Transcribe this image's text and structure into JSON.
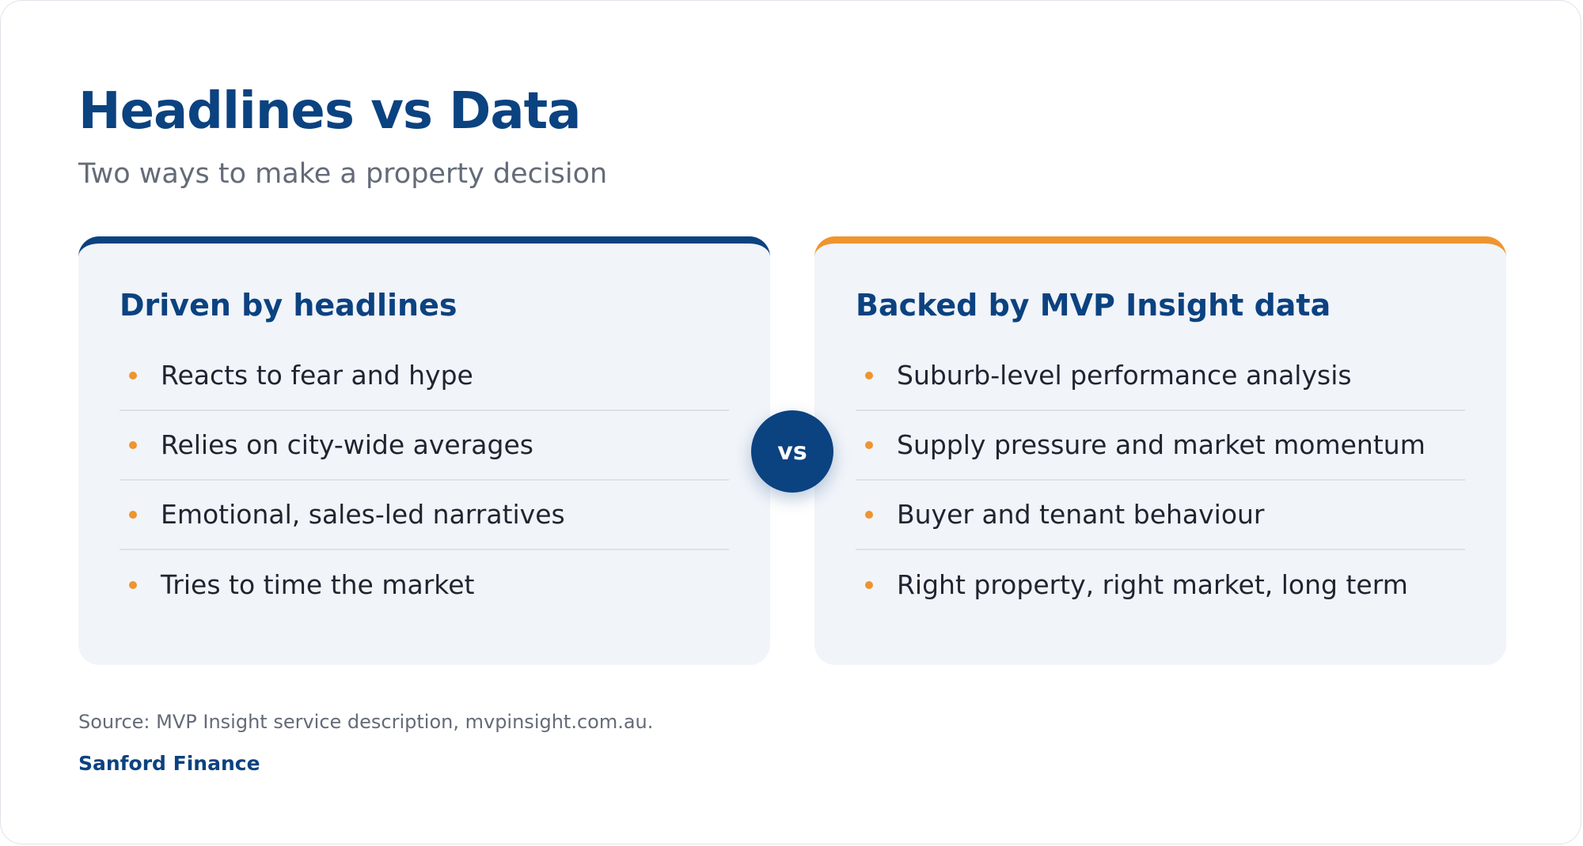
{
  "header": {
    "title": "Headlines vs Data",
    "subtitle": "Two ways to make a property decision"
  },
  "left_card": {
    "title": "Driven by headlines",
    "accent_color": "#0b4280",
    "items": [
      "Reacts to fear and hype",
      "Relies on city-wide averages",
      "Emotional, sales-led narratives",
      "Tries to time the market"
    ]
  },
  "right_card": {
    "title": "Backed by MVP Insight data",
    "accent_color": "#ee952f",
    "items": [
      "Suburb-level performance analysis",
      "Supply pressure and market momentum",
      "Buyer and tenant behaviour",
      "Right property, right market, long term"
    ]
  },
  "vs_badge": "vs",
  "footer": {
    "source": "Source: MVP Insight service description, mvpinsight.com.au.",
    "brand": "Sanford Finance"
  },
  "colors": {
    "primary": "#0b4280",
    "accent": "#ee952f",
    "card_bg": "#f1f4f9"
  }
}
